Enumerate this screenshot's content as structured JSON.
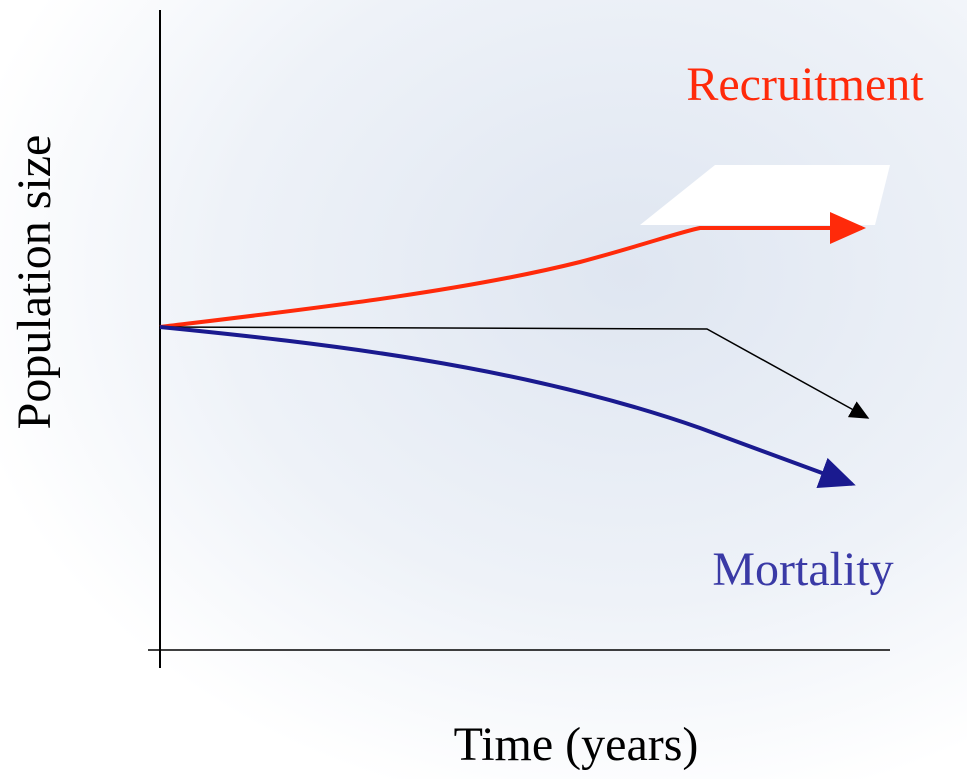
{
  "y_axis_label": "Population size",
  "x_axis_label": "Time (years)",
  "curves": [
    {
      "label": "Recruitment"
    },
    {
      "label": "Mortality"
    }
  ]
}
